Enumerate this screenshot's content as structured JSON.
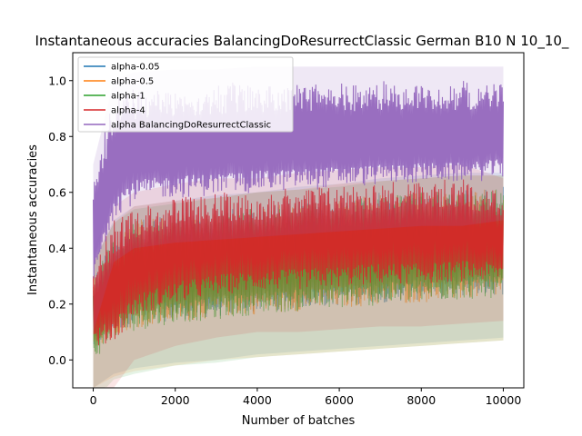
{
  "chart_data": {
    "type": "line",
    "title": "Instantaneous accuracies BalancingDoResurrectClassic German B10 N 10_10_",
    "xlabel": "Number of batches",
    "ylabel": "Instantaneous accuracies",
    "xlim": [
      -500,
      10500
    ],
    "ylim": [
      -0.1,
      1.1
    ],
    "x_ticks": [
      0,
      2000,
      4000,
      6000,
      8000,
      10000
    ],
    "y_ticks": [
      0.0,
      0.2,
      0.4,
      0.6,
      0.8,
      1.0
    ],
    "x_tick_labels": [
      "0",
      "2000",
      "4000",
      "6000",
      "8000",
      "10000"
    ],
    "y_tick_labels": [
      "0.0",
      "0.2",
      "0.4",
      "0.6",
      "0.8",
      "1.0"
    ],
    "legend_position": "top-left",
    "grid": false,
    "x_range": [
      0,
      10000
    ],
    "series": [
      {
        "name": "alpha-0.05",
        "color": "#1f77b4",
        "band": {
          "x": [
            0,
            500,
            1000,
            2000,
            3000,
            4000,
            5000,
            6000,
            7000,
            8000,
            9000,
            10000
          ],
          "low": [
            0.0,
            0.05,
            0.07,
            0.09,
            0.1,
            0.12,
            0.13,
            0.14,
            0.15,
            0.16,
            0.17,
            0.18
          ],
          "high": [
            0.3,
            0.45,
            0.5,
            0.52,
            0.54,
            0.55,
            0.57,
            0.58,
            0.6,
            0.61,
            0.62,
            0.62
          ]
        }
      },
      {
        "name": "alpha-0.5",
        "color": "#ff7f0e",
        "band": {
          "x": [
            0,
            500,
            1000,
            2000,
            3000,
            4000,
            5000,
            6000,
            7000,
            8000,
            9000,
            10000
          ],
          "low": [
            0.0,
            0.04,
            0.06,
            0.08,
            0.1,
            0.11,
            0.12,
            0.13,
            0.14,
            0.15,
            0.16,
            0.17
          ],
          "high": [
            0.3,
            0.44,
            0.5,
            0.52,
            0.53,
            0.55,
            0.56,
            0.58,
            0.59,
            0.6,
            0.61,
            0.61
          ]
        }
      },
      {
        "name": "alpha-1",
        "color": "#2ca02c",
        "band": {
          "x": [
            0,
            500,
            1000,
            2000,
            3000,
            4000,
            5000,
            6000,
            7000,
            8000,
            9000,
            10000
          ],
          "low": [
            -0.05,
            0.03,
            0.05,
            0.08,
            0.09,
            0.11,
            0.12,
            0.13,
            0.14,
            0.15,
            0.16,
            0.17
          ],
          "high": [
            0.3,
            0.44,
            0.49,
            0.51,
            0.53,
            0.55,
            0.56,
            0.57,
            0.59,
            0.6,
            0.61,
            0.61
          ]
        }
      },
      {
        "name": "alpha-4",
        "color": "#d62728",
        "band": {
          "x": [
            0,
            500,
            1000,
            2000,
            3000,
            4000,
            5000,
            6000,
            7000,
            8000,
            9000,
            10000
          ],
          "low": [
            0.0,
            0.0,
            0.1,
            0.15,
            0.18,
            0.2,
            0.2,
            0.21,
            0.22,
            0.22,
            0.23,
            0.24
          ],
          "high": [
            0.35,
            0.5,
            0.55,
            0.58,
            0.6,
            0.6,
            0.62,
            0.63,
            0.64,
            0.64,
            0.65,
            0.6
          ]
        }
      },
      {
        "name": "alpha BalancingDoResurrectClassic",
        "color": "#9467bd",
        "band": {
          "x": [
            0,
            500,
            1000,
            2000,
            3000,
            4000,
            5000,
            6000,
            7000,
            8000,
            9000,
            10000
          ],
          "low": [
            0.2,
            0.45,
            0.5,
            0.52,
            0.53,
            0.54,
            0.55,
            0.56,
            0.57,
            0.58,
            0.58,
            0.6
          ],
          "high": [
            0.65,
            0.95,
            0.98,
            0.99,
            0.99,
            1.0,
            1.0,
            1.0,
            1.0,
            1.0,
            1.0,
            1.0
          ]
        }
      }
    ]
  }
}
